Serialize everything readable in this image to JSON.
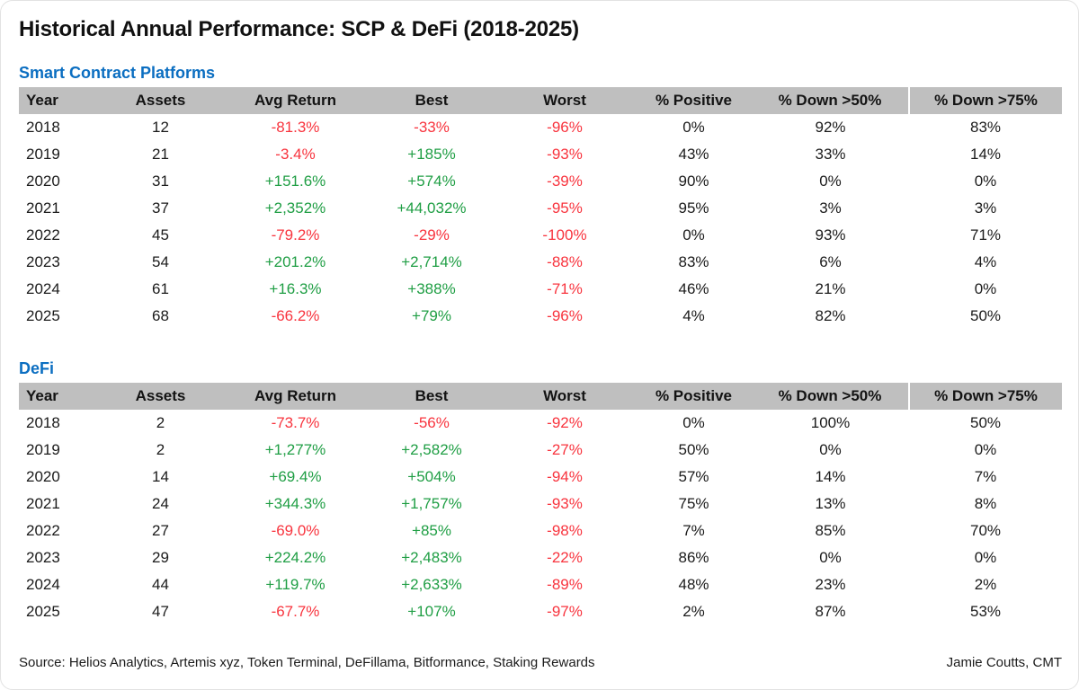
{
  "title": "Historical Annual Performance: SCP & DeFi (2018-2025)",
  "footer": {
    "source": "Source: Helios Analytics, Artemis xyz, Token Terminal, DeFillama, Bitformance, Staking Rewards",
    "author": "Jamie Coutts, CMT"
  },
  "colors": {
    "positive": "#1f9e44",
    "negative": "#f8343e",
    "section_title": "#0b6ec1",
    "header_bg": "#bfbfbf",
    "text": "#1b1b1b"
  },
  "chart_data": [
    {
      "type": "table",
      "title": "Smart Contract Platforms",
      "columns": [
        "Year",
        "Assets",
        "Avg Return",
        "Best",
        "Worst",
        "% Positive",
        "% Down >50%",
        "% Down >75%"
      ],
      "rows": [
        [
          "2018",
          "12",
          "-81.3%",
          "-33%",
          "-96%",
          "0%",
          "92%",
          "83%"
        ],
        [
          "2019",
          "21",
          "-3.4%",
          "+185%",
          "-93%",
          "43%",
          "33%",
          "14%"
        ],
        [
          "2020",
          "31",
          "+151.6%",
          "+574%",
          "-39%",
          "90%",
          "0%",
          "0%"
        ],
        [
          "2021",
          "37",
          "+2,352%",
          "+44,032%",
          "-95%",
          "95%",
          "3%",
          "3%"
        ],
        [
          "2022",
          "45",
          "-79.2%",
          "-29%",
          "-100%",
          "0%",
          "93%",
          "71%"
        ],
        [
          "2023",
          "54",
          "+201.2%",
          "+2,714%",
          "-88%",
          "83%",
          "6%",
          "4%"
        ],
        [
          "2024",
          "61",
          "+16.3%",
          "+388%",
          "-71%",
          "46%",
          "21%",
          "0%"
        ],
        [
          "2025",
          "68",
          "-66.2%",
          "+79%",
          "-96%",
          "4%",
          "82%",
          "50%"
        ]
      ]
    },
    {
      "type": "table",
      "title": "DeFi",
      "columns": [
        "Year",
        "Assets",
        "Avg Return",
        "Best",
        "Worst",
        "% Positive",
        "% Down >50%",
        "% Down >75%"
      ],
      "rows": [
        [
          "2018",
          "2",
          "-73.7%",
          "-56%",
          "-92%",
          "0%",
          "100%",
          "50%"
        ],
        [
          "2019",
          "2",
          "+1,277%",
          "+2,582%",
          "-27%",
          "50%",
          "0%",
          "0%"
        ],
        [
          "2020",
          "14",
          "+69.4%",
          "+504%",
          "-94%",
          "57%",
          "14%",
          "7%"
        ],
        [
          "2021",
          "24",
          "+344.3%",
          "+1,757%",
          "-93%",
          "75%",
          "13%",
          "8%"
        ],
        [
          "2022",
          "27",
          "-69.0%",
          "+85%",
          "-98%",
          "7%",
          "85%",
          "70%"
        ],
        [
          "2023",
          "29",
          "+224.2%",
          "+2,483%",
          "-22%",
          "86%",
          "0%",
          "0%"
        ],
        [
          "2024",
          "44",
          "+119.7%",
          "+2,633%",
          "-89%",
          "48%",
          "23%",
          "2%"
        ],
        [
          "2025",
          "47",
          "-67.7%",
          "+107%",
          "-97%",
          "2%",
          "87%",
          "53%"
        ]
      ]
    }
  ]
}
